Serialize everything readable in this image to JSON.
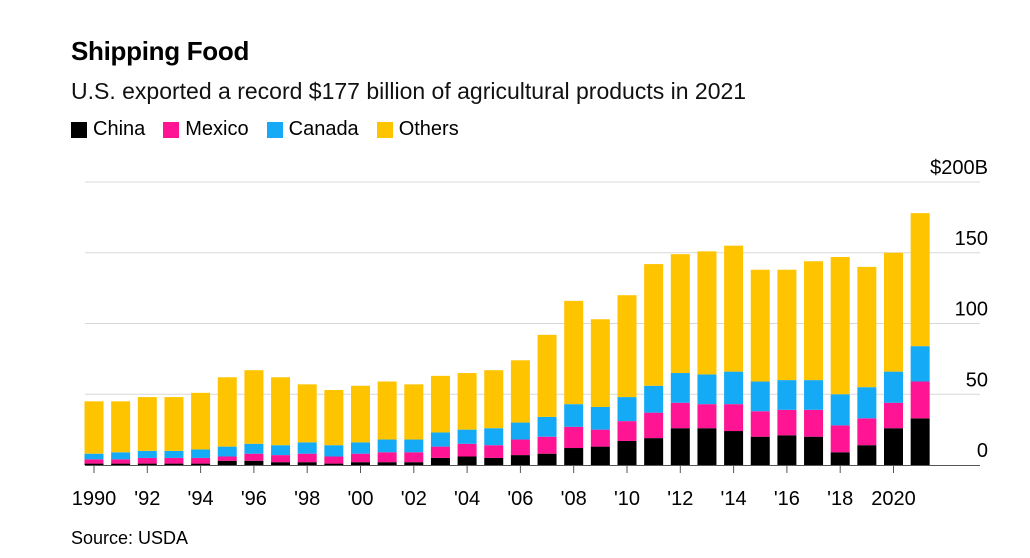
{
  "title": "Shipping Food",
  "subtitle": "U.S. exported a record $177 billion of agricultural products in 2021",
  "source": "Source: USDA",
  "legend": [
    {
      "name": "China",
      "color": "#000000"
    },
    {
      "name": "Mexico",
      "color": "#ff1493"
    },
    {
      "name": "Canada",
      "color": "#14aaf5"
    },
    {
      "name": "Others",
      "color": "#ffc400"
    }
  ],
  "chart_data": {
    "type": "bar",
    "stacked": true,
    "title": "Shipping Food",
    "subtitle": "U.S. exported a record $177 billion of agricultural products in 2021",
    "x": [
      1990,
      1991,
      1992,
      1993,
      1994,
      1995,
      1996,
      1997,
      1998,
      1999,
      2000,
      2001,
      2002,
      2003,
      2004,
      2005,
      2006,
      2007,
      2008,
      2009,
      2010,
      2011,
      2012,
      2013,
      2014,
      2015,
      2016,
      2017,
      2018,
      2019,
      2020,
      2021
    ],
    "x_tick_labels": [
      {
        "x": 1990,
        "label": "1990"
      },
      {
        "x": 1992,
        "label": "'92"
      },
      {
        "x": 1994,
        "label": "'94"
      },
      {
        "x": 1996,
        "label": "'96"
      },
      {
        "x": 1998,
        "label": "'98"
      },
      {
        "x": 2000,
        "label": "'00"
      },
      {
        "x": 2002,
        "label": "'02"
      },
      {
        "x": 2004,
        "label": "'04"
      },
      {
        "x": 2006,
        "label": "'06"
      },
      {
        "x": 2008,
        "label": "'08"
      },
      {
        "x": 2010,
        "label": "'10"
      },
      {
        "x": 2012,
        "label": "'12"
      },
      {
        "x": 2014,
        "label": "'14"
      },
      {
        "x": 2016,
        "label": "'16"
      },
      {
        "x": 2018,
        "label": "'18"
      },
      {
        "x": 2020,
        "label": "2020"
      }
    ],
    "y_ticks": [
      {
        "value": 0,
        "label": "0"
      },
      {
        "value": 50,
        "label": "50"
      },
      {
        "value": 100,
        "label": "100"
      },
      {
        "value": 150,
        "label": "150"
      },
      {
        "value": 200,
        "label": "$200B"
      }
    ],
    "ylim": [
      0,
      200
    ],
    "ylabel": "",
    "xlabel": "",
    "grid": true,
    "legend_position": "top-left",
    "series": [
      {
        "name": "China",
        "color": "#000000",
        "values": [
          1,
          1,
          1,
          1,
          1,
          3,
          3,
          2,
          2,
          1,
          2,
          2,
          2,
          5,
          6,
          5,
          7,
          8,
          12,
          13,
          17,
          19,
          26,
          26,
          24,
          20,
          21,
          20,
          9,
          14,
          26,
          33
        ]
      },
      {
        "name": "Mexico",
        "color": "#ff1493",
        "values": [
          3,
          3,
          4,
          4,
          4,
          3,
          5,
          5,
          6,
          5,
          6,
          7,
          7,
          8,
          9,
          9,
          11,
          12,
          15,
          12,
          14,
          18,
          18,
          17,
          19,
          18,
          18,
          19,
          19,
          19,
          18,
          26
        ]
      },
      {
        "name": "Canada",
        "color": "#14aaf5",
        "values": [
          4,
          5,
          5,
          5,
          6,
          7,
          7,
          7,
          8,
          8,
          8,
          9,
          9,
          10,
          10,
          12,
          12,
          14,
          16,
          16,
          17,
          19,
          21,
          21,
          23,
          21,
          21,
          21,
          22,
          22,
          22,
          25
        ]
      },
      {
        "name": "Others",
        "color": "#ffc400",
        "values": [
          37,
          36,
          38,
          38,
          40,
          49,
          52,
          48,
          41,
          39,
          40,
          41,
          39,
          40,
          40,
          41,
          44,
          58,
          73,
          62,
          72,
          86,
          84,
          87,
          89,
          79,
          78,
          84,
          97,
          85,
          84,
          94
        ]
      }
    ]
  }
}
